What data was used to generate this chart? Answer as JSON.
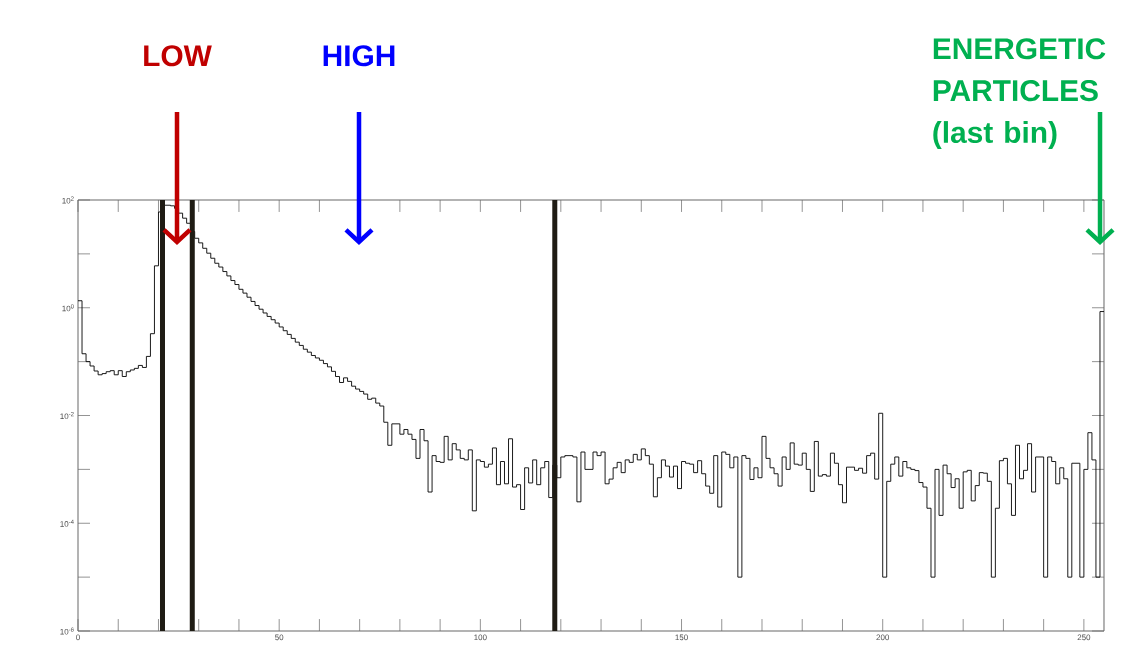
{
  "chart_data": {
    "type": "histogram",
    "bins": [
      0,
      1,
      2,
      3,
      4,
      5,
      6,
      7,
      8,
      9,
      10,
      11,
      12,
      13,
      14,
      15,
      16,
      17,
      18,
      19,
      20,
      21,
      22,
      23,
      24,
      25,
      26,
      27,
      28,
      29,
      30,
      31,
      32,
      33,
      34,
      35,
      36,
      37,
      38,
      39,
      40,
      41,
      42,
      43,
      44,
      45,
      46,
      47,
      48,
      49,
      50,
      51,
      52,
      53,
      54,
      55,
      56,
      57,
      58,
      59,
      60,
      61,
      62,
      63,
      64,
      65,
      66,
      67,
      68,
      69,
      70,
      71,
      72,
      73,
      74,
      75,
      76,
      77,
      78,
      79,
      80,
      81,
      82,
      83,
      84,
      85,
      86,
      87,
      88,
      89,
      90,
      91,
      92,
      93,
      94,
      95,
      96,
      97,
      98,
      99,
      100,
      101,
      102,
      103,
      104,
      105,
      106,
      107,
      108,
      109,
      110,
      111,
      112,
      113,
      114,
      115,
      116,
      117,
      118,
      119,
      120,
      121,
      122,
      123,
      124,
      125,
      126,
      127,
      128,
      129,
      130,
      131,
      132,
      133,
      134,
      135,
      136,
      137,
      138,
      139,
      140,
      141,
      142,
      143,
      144,
      145,
      146,
      147,
      148,
      149,
      150,
      151,
      152,
      153,
      154,
      155,
      156,
      157,
      158,
      159,
      160,
      161,
      162,
      163,
      164,
      165,
      166,
      167,
      168,
      169,
      170,
      171,
      172,
      173,
      174,
      175,
      176,
      177,
      178,
      179,
      180,
      181,
      182,
      183,
      184,
      185,
      186,
      187,
      188,
      189,
      190,
      191,
      192,
      193,
      194,
      195,
      196,
      197,
      198,
      199,
      200,
      201,
      202,
      203,
      204,
      205,
      206,
      207,
      208,
      209,
      210,
      211,
      212,
      213,
      214,
      215,
      216,
      217,
      218,
      219,
      220,
      221,
      222,
      223,
      224,
      225,
      226,
      227,
      228,
      229,
      230,
      231,
      232,
      233,
      234,
      235,
      236,
      237,
      238,
      239,
      240,
      241,
      242,
      243,
      244,
      245,
      246,
      247,
      248,
      249,
      250,
      251,
      252,
      253,
      254,
      255
    ],
    "values": [
      1.35,
      0.14,
      0.1,
      0.083,
      0.067,
      0.057,
      0.06,
      0.065,
      0.068,
      0.057,
      0.068,
      0.053,
      0.065,
      0.07,
      0.075,
      0.085,
      0.078,
      0.125,
      0.33,
      6,
      60,
      80,
      80,
      78,
      70,
      57,
      46,
      37,
      26,
      19.5,
      16,
      12.7,
      10.3,
      8.3,
      6.7,
      5.7,
      4.7,
      3.9,
      3.2,
      2.7,
      2.2,
      1.87,
      1.57,
      1.31,
      1.1,
      0.94,
      0.8,
      0.69,
      0.6,
      0.52,
      0.44,
      0.375,
      0.32,
      0.27,
      0.23,
      0.2,
      0.17,
      0.15,
      0.13,
      0.117,
      0.106,
      0.092,
      0.08,
      0.066,
      0.053,
      0.041,
      0.05,
      0.043,
      0.035,
      0.031,
      0.028,
      0.025,
      0.02,
      0.021,
      0.017,
      0.015,
      0.0075,
      0.0028,
      0.007,
      0.007,
      0.0045,
      0.0055,
      0.0045,
      0.0036,
      0.0016,
      0.0055,
      0.0034,
      0.00038,
      0.0018,
      0.0014,
      0.00135,
      0.0041,
      0.0015,
      0.003,
      0.0023,
      0.0016,
      0.0015,
      0.0023,
      0.00017,
      0.0015,
      0.0014,
      0.0011,
      0.00125,
      0.0025,
      0.00052,
      0.0014,
      0.00054,
      0.0037,
      0.00047,
      0.00052,
      0.00018,
      0.00107,
      0.00056,
      0.0015,
      0.00052,
      0.00107,
      0.0014,
      0.0003,
      0.0012,
      0.0007,
      0.0017,
      0.0018,
      0.0018,
      0.0017,
      0.00025,
      0.0021,
      0.001,
      0.001,
      0.0021,
      0.0018,
      0.0021,
      0.00054,
      0.00066,
      0.00107,
      0.00135,
      0.00087,
      0.0015,
      0.00135,
      0.0019,
      0.0015,
      0.0024,
      0.0018,
      0.00125,
      0.00031,
      0.0007,
      0.0015,
      0.00115,
      0.00072,
      0.00115,
      0.00044,
      0.0014,
      0.0013,
      0.00125,
      0.00087,
      0.00145,
      0.00083,
      0.00049,
      0.00036,
      0.0018,
      0.0002,
      0.0021,
      0.0019,
      0.00107,
      0.0017,
      1e-05,
      0.0018,
      0.0016,
      0.00065,
      0.00107,
      0.0007,
      0.0041,
      0.0016,
      0.00107,
      0.00083,
      0.00049,
      0.0017,
      0.001,
      0.0031,
      0.00125,
      0.0012,
      0.002,
      0.001,
      0.00039,
      0.0033,
      0.00075,
      0.0008,
      0.00075,
      0.002,
      0.0013,
      0.00052,
      0.00024,
      0.0011,
      0.0011,
      0.00096,
      0.00105,
      0.00085,
      0.0018,
      0.002,
      0.00066,
      0.011,
      1e-05,
      0.0006,
      0.00125,
      0.0017,
      0.00075,
      0.0014,
      0.00107,
      0.001,
      0.00095,
      0.00057,
      0.00047,
      0.00019,
      1e-05,
      0.001,
      0.00014,
      0.0012,
      0.00083,
      0.00046,
      0.00067,
      0.00019,
      0.0009,
      0.00096,
      0.00026,
      0.0005,
      0.00087,
      0.00085,
      0.0006,
      1e-05,
      0.00019,
      0.00145,
      0.0016,
      0.00054,
      0.00014,
      0.0028,
      0.00067,
      0.00096,
      0.003,
      0.00038,
      0.0017,
      0.0017,
      1e-05,
      0.0017,
      0.0014,
      0.00054,
      0.00107,
      0.00067,
      1e-05,
      0.0013,
      0.0013,
      1e-05,
      0.001,
      0.0048,
      0.0015,
      1e-05,
      0.85
    ],
    "color": "#000000",
    "log": "y",
    "xlim": [
      0,
      255
    ],
    "ylim": [
      1e-06,
      100
    ],
    "xticks": [
      0,
      {
        "value": 10,
        "label": null
      },
      {
        "value": 20,
        "label": null
      },
      {
        "value": 30,
        "label": null
      },
      {
        "value": 40,
        "label": null
      },
      50,
      {
        "value": 60,
        "label": null
      },
      {
        "value": 70,
        "label": null
      },
      {
        "value": 80,
        "label": null
      },
      {
        "value": 90,
        "label": null
      },
      100,
      {
        "value": 110,
        "label": null
      },
      {
        "value": 120,
        "label": null
      },
      {
        "value": 130,
        "label": null
      },
      {
        "value": 140,
        "label": null
      },
      150,
      {
        "value": 160,
        "label": null
      },
      {
        "value": 170,
        "label": null
      },
      {
        "value": 180,
        "label": null
      },
      {
        "value": 190,
        "label": null
      },
      200,
      {
        "value": 210,
        "label": null
      },
      {
        "value": 220,
        "label": null
      },
      {
        "value": 230,
        "label": null
      },
      {
        "value": 240,
        "label": null
      },
      250
    ],
    "yticks": [
      {
        "value": 1e-06,
        "label": "10$^{-6}$"
      },
      {
        "value": 1e-05,
        "label": null
      },
      {
        "value": 0.0001,
        "label": "10$^{-4}$"
      },
      {
        "value": 0.001,
        "label": null
      },
      {
        "value": 0.01,
        "label": "10$^{-2}$"
      },
      {
        "value": 0.1,
        "label": null
      },
      {
        "value": 1,
        "label": "10$^{0}$"
      },
      {
        "value": 10,
        "label": null
      },
      {
        "value": 100,
        "label": "10$^{2}$"
      }
    ],
    "ref_lines": [
      {
        "axis": "x",
        "value": 21,
        "color": "#1f1c14",
        "line_style": "solid"
      },
      {
        "axis": "x",
        "value": 28.4,
        "color": "#1f1c14",
        "line_style": "solid"
      },
      {
        "axis": "x",
        "value": 118.5,
        "color": "#1f1c14",
        "line_style": "solid"
      }
    ],
    "annotations": [
      "LOW",
      "HIGH",
      "ENERGETIC PARTICLES (last bin)"
    ]
  }
}
